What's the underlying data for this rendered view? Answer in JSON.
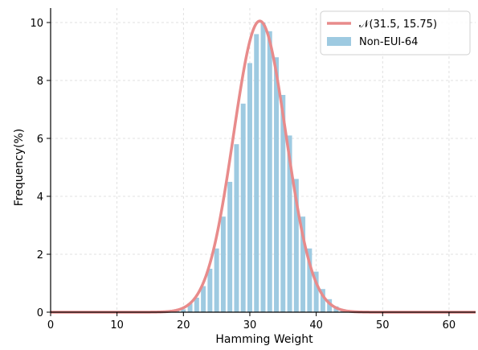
{
  "chart_data": {
    "type": "bar",
    "title": "",
    "xlabel": "Hamming Weight",
    "ylabel": "Frequency(%)",
    "xlim": [
      0,
      64
    ],
    "ylim": [
      0,
      10.5
    ],
    "x_ticks": [
      0,
      10,
      20,
      30,
      40,
      50,
      60
    ],
    "y_ticks": [
      0,
      2,
      4,
      6,
      8,
      10
    ],
    "grid": true,
    "legend": {
      "position": "top-right",
      "entries": [
        {
          "label": "𝒩(31.5, 15.75)",
          "kind": "line",
          "color": "#e88b8b"
        },
        {
          "label": "Non-EUI-64",
          "kind": "bar",
          "color": "#9ecae1"
        }
      ]
    },
    "series": [
      {
        "name": "Non-EUI-64",
        "kind": "bar",
        "color": "#9ecae1",
        "x": [
          19,
          20,
          21,
          22,
          23,
          24,
          25,
          26,
          27,
          28,
          29,
          30,
          31,
          32,
          33,
          34,
          35,
          36,
          37,
          38,
          39,
          40,
          41,
          42,
          43,
          44
        ],
        "values": [
          0.05,
          0.1,
          0.3,
          0.5,
          0.9,
          1.5,
          2.2,
          3.3,
          4.5,
          5.8,
          7.2,
          8.6,
          9.6,
          10.0,
          9.7,
          8.8,
          7.5,
          6.1,
          4.6,
          3.3,
          2.2,
          1.4,
          0.8,
          0.45,
          0.2,
          0.1
        ]
      },
      {
        "name": "𝒩(31.5, 15.75)",
        "kind": "line",
        "color": "#e88b8b",
        "mean": 31.5,
        "variance": 15.75
      }
    ]
  }
}
